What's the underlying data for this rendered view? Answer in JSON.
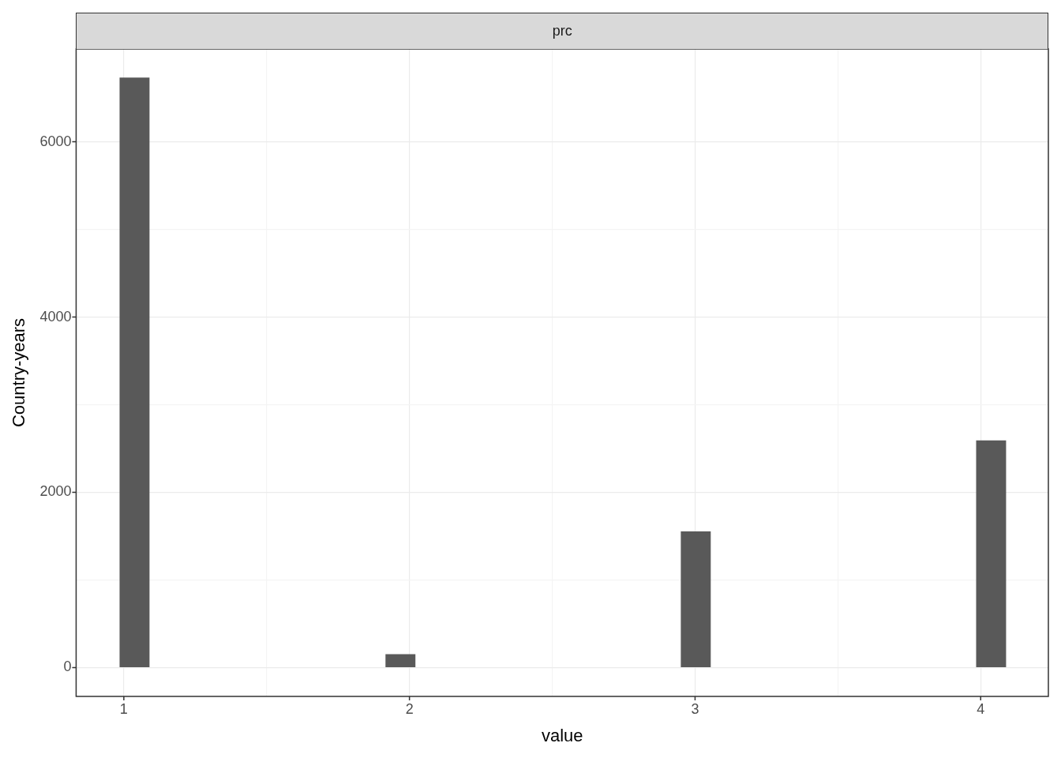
{
  "chart_data": {
    "type": "histogram",
    "title": "prc",
    "xlabel": "value",
    "ylabel": "Country-years",
    "bins": [
      0.986,
      1.089,
      1.193,
      1.296,
      1.4,
      1.503,
      1.606,
      1.71,
      1.813,
      1.917,
      2.02,
      2.123,
      2.227,
      2.33,
      2.434,
      2.537,
      2.64,
      2.744,
      2.847,
      2.951,
      3.054,
      3.157,
      3.261,
      3.364,
      3.468,
      3.571,
      3.674,
      3.778,
      3.881,
      3.985,
      4.088
    ],
    "values": [
      6730,
      0,
      0,
      0,
      0,
      0,
      0,
      0,
      0,
      150,
      0,
      0,
      0,
      0,
      0,
      0,
      0,
      0,
      0,
      1550,
      0,
      0,
      0,
      0,
      0,
      0,
      0,
      0,
      0,
      2590
    ],
    "color": "#595959",
    "xlim": [
      0.833,
      4.237
    ],
    "xticks": [
      1,
      {
        "value": 1.5,
        "label": null
      },
      2,
      {
        "value": 2.5,
        "label": null
      },
      3,
      {
        "value": 3.5,
        "label": null
      },
      4
    ],
    "ylim": [
      -330,
      7060
    ],
    "yticks": [
      0,
      {
        "value": 1000,
        "label": null
      },
      2000,
      {
        "value": 3000,
        "label": null
      },
      4000,
      {
        "value": 5000,
        "label": null
      },
      6000
    ],
    "grid": true
  }
}
